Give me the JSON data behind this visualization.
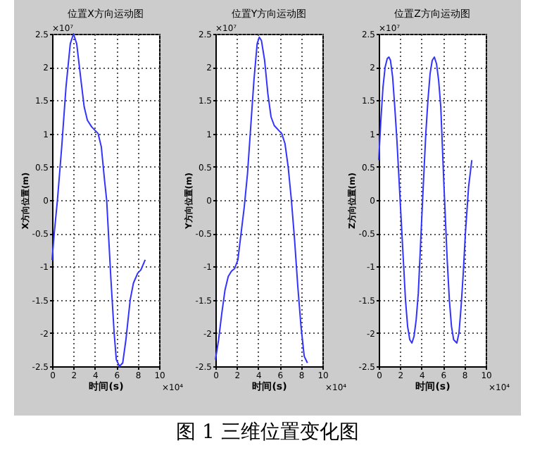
{
  "chart_data": [
    {
      "type": "line",
      "title": "位置X方向运动图",
      "xlabel": "时间(s)",
      "ylabel": "X方向位置(m)",
      "annotations": [
        "×10⁷",
        "×10⁴"
      ],
      "xlim": [
        0,
        10
      ],
      "xticks": [
        0,
        2,
        4,
        6,
        8,
        10
      ],
      "ylim": [
        -2.5,
        2.5
      ],
      "yticks": [
        -2.5,
        -2,
        -1.5,
        -1,
        -0.5,
        0,
        0.5,
        1,
        1.5,
        2,
        2.5
      ],
      "grid": true,
      "line_style": "solid",
      "marker": "none",
      "series": [
        {
          "color": "#3333ff",
          "x": [
            0,
            0.2,
            0.5,
            0.9,
            1.3,
            1.7,
            2.0,
            2.3,
            2.7,
            3.0,
            3.3,
            3.7,
            4.0,
            4.3,
            4.6,
            4.9,
            5.1,
            5.3,
            5.5,
            5.8,
            6.0,
            6.3,
            6.6,
            6.9,
            7.1,
            7.3,
            7.6,
            8.0,
            8.3,
            8.7
          ],
          "values": [
            -0.9,
            -0.5,
            0,
            0.8,
            1.7,
            2.35,
            2.5,
            2.35,
            1.8,
            1.4,
            1.2,
            1.1,
            1.05,
            1.0,
            0.8,
            0.3,
            0,
            -0.6,
            -1.2,
            -2.0,
            -2.4,
            -2.5,
            -2.45,
            -2.1,
            -1.8,
            -1.5,
            -1.25,
            -1.1,
            -1.05,
            -0.9
          ]
        }
      ]
    },
    {
      "type": "line",
      "title": "位置Y方向运动图",
      "xlabel": "时间(s)",
      "ylabel": "Y方向位置(m)",
      "annotations": [
        "×10⁷",
        "×10⁴",
        "图 1  三维位置变化图"
      ],
      "xlim": [
        0,
        10
      ],
      "xticks": [
        0,
        2,
        4,
        6,
        8,
        10
      ],
      "ylim": [
        -2.5,
        2.5
      ],
      "yticks": [
        -2.5,
        -2,
        -1.5,
        -1,
        -0.5,
        0,
        0.5,
        1,
        1.5,
        2,
        2.5
      ],
      "grid": true,
      "line_style": "solid",
      "marker": "none",
      "series": [
        {
          "color": "#3333ff",
          "x": [
            0,
            0.3,
            0.6,
            0.9,
            1.2,
            1.5,
            1.8,
            2.1,
            2.4,
            2.7,
            3.0,
            3.3,
            3.6,
            3.9,
            4.1,
            4.3,
            4.6,
            4.9,
            5.2,
            5.5,
            5.9,
            6.2,
            6.5,
            6.8,
            7.1,
            7.4,
            7.7,
            8.0,
            8.3,
            8.6
          ],
          "values": [
            -2.4,
            -2.1,
            -1.7,
            -1.35,
            -1.15,
            -1.07,
            -1.03,
            -0.9,
            -0.5,
            -0.1,
            0.4,
            1.1,
            1.8,
            2.35,
            2.45,
            2.4,
            2.1,
            1.6,
            1.25,
            1.12,
            1.05,
            1.0,
            0.85,
            0.5,
            0.0,
            -0.6,
            -1.3,
            -1.9,
            -2.35,
            -2.45
          ]
        }
      ]
    },
    {
      "type": "line",
      "title": "位置Z方向运动图",
      "xlabel": "时间(s)",
      "ylabel": "Z方向位置(m)",
      "annotations": [
        "×10⁷",
        "×10⁴"
      ],
      "xlim": [
        0,
        10
      ],
      "xticks": [
        0,
        2,
        4,
        6,
        8,
        10
      ],
      "ylim": [
        -2.5,
        2.5
      ],
      "yticks": [
        -2.5,
        -2,
        -1.5,
        -1,
        -0.5,
        0,
        0.5,
        1,
        1.5,
        2,
        2.5
      ],
      "grid": true,
      "line_style": "solid",
      "marker": "none",
      "series": [
        {
          "color": "#3333ff",
          "x": [
            0,
            0.2,
            0.4,
            0.6,
            0.8,
            0.95,
            1.1,
            1.3,
            1.5,
            1.7,
            2.0,
            2.3,
            2.5,
            2.7,
            2.9,
            3.1,
            3.3,
            3.5,
            3.7,
            4.1,
            4.4,
            4.6,
            4.8,
            5.0,
            5.2,
            5.4,
            5.6,
            5.8,
            6.1,
            6.4,
            6.6,
            6.8,
            7.0,
            7.3,
            7.5,
            7.7,
            7.9,
            8.1,
            8.4,
            8.7
          ],
          "values": [
            0.6,
            1.2,
            1.7,
            2.0,
            2.13,
            2.15,
            2.1,
            1.85,
            1.4,
            0.9,
            0.0,
            -0.9,
            -1.5,
            -1.9,
            -2.1,
            -2.15,
            -2.05,
            -1.8,
            -1.4,
            0.0,
            1.0,
            1.5,
            1.9,
            2.1,
            2.15,
            2.05,
            1.8,
            1.4,
            0.2,
            -0.9,
            -1.5,
            -1.9,
            -2.1,
            -2.15,
            -2.0,
            -1.6,
            -1.1,
            -0.5,
            0.2,
            0.6
          ]
        }
      ]
    }
  ]
}
